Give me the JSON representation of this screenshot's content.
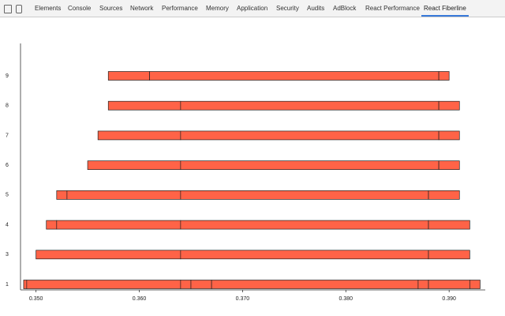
{
  "tabs": [
    "Elements",
    "Console",
    "Sources",
    "Network",
    "Performance",
    "Memory",
    "Application",
    "Security",
    "Audits",
    "AdBlock",
    "React Performance",
    "React Fiberline"
  ],
  "active_tab": 11,
  "chart_data": {
    "type": "timeline",
    "rows": [
      {
        "label": "9",
        "boundaries": [
          0.357,
          0.361,
          0.389,
          0.39
        ]
      },
      {
        "label": "8",
        "boundaries": [
          0.357,
          0.364,
          0.389,
          0.391
        ]
      },
      {
        "label": "7",
        "boundaries": [
          0.356,
          0.364,
          0.389,
          0.391
        ]
      },
      {
        "label": "6",
        "boundaries": [
          0.355,
          0.364,
          0.389,
          0.391
        ]
      },
      {
        "label": "5",
        "boundaries": [
          0.352,
          0.353,
          0.364,
          0.388,
          0.391
        ]
      },
      {
        "label": "4",
        "boundaries": [
          0.351,
          0.352,
          0.364,
          0.388,
          0.392
        ]
      },
      {
        "label": "3",
        "boundaries": [
          0.35,
          0.364,
          0.388,
          0.392
        ]
      },
      {
        "label": "1",
        "boundaries": [
          0.3488,
          0.3491,
          0.364,
          0.365,
          0.367,
          0.387,
          0.388,
          0.392,
          0.393
        ]
      }
    ],
    "color": "#ff6347",
    "xlim": [
      0.3485,
      0.3935
    ],
    "xticks": [
      {
        "value": 0.35,
        "label": "0.350"
      },
      {
        "value": 0.36,
        "label": "0.360"
      },
      {
        "value": 0.37,
        "label": "0.370"
      },
      {
        "value": 0.38,
        "label": "0.380"
      },
      {
        "value": 0.39,
        "label": "0.390"
      }
    ]
  }
}
